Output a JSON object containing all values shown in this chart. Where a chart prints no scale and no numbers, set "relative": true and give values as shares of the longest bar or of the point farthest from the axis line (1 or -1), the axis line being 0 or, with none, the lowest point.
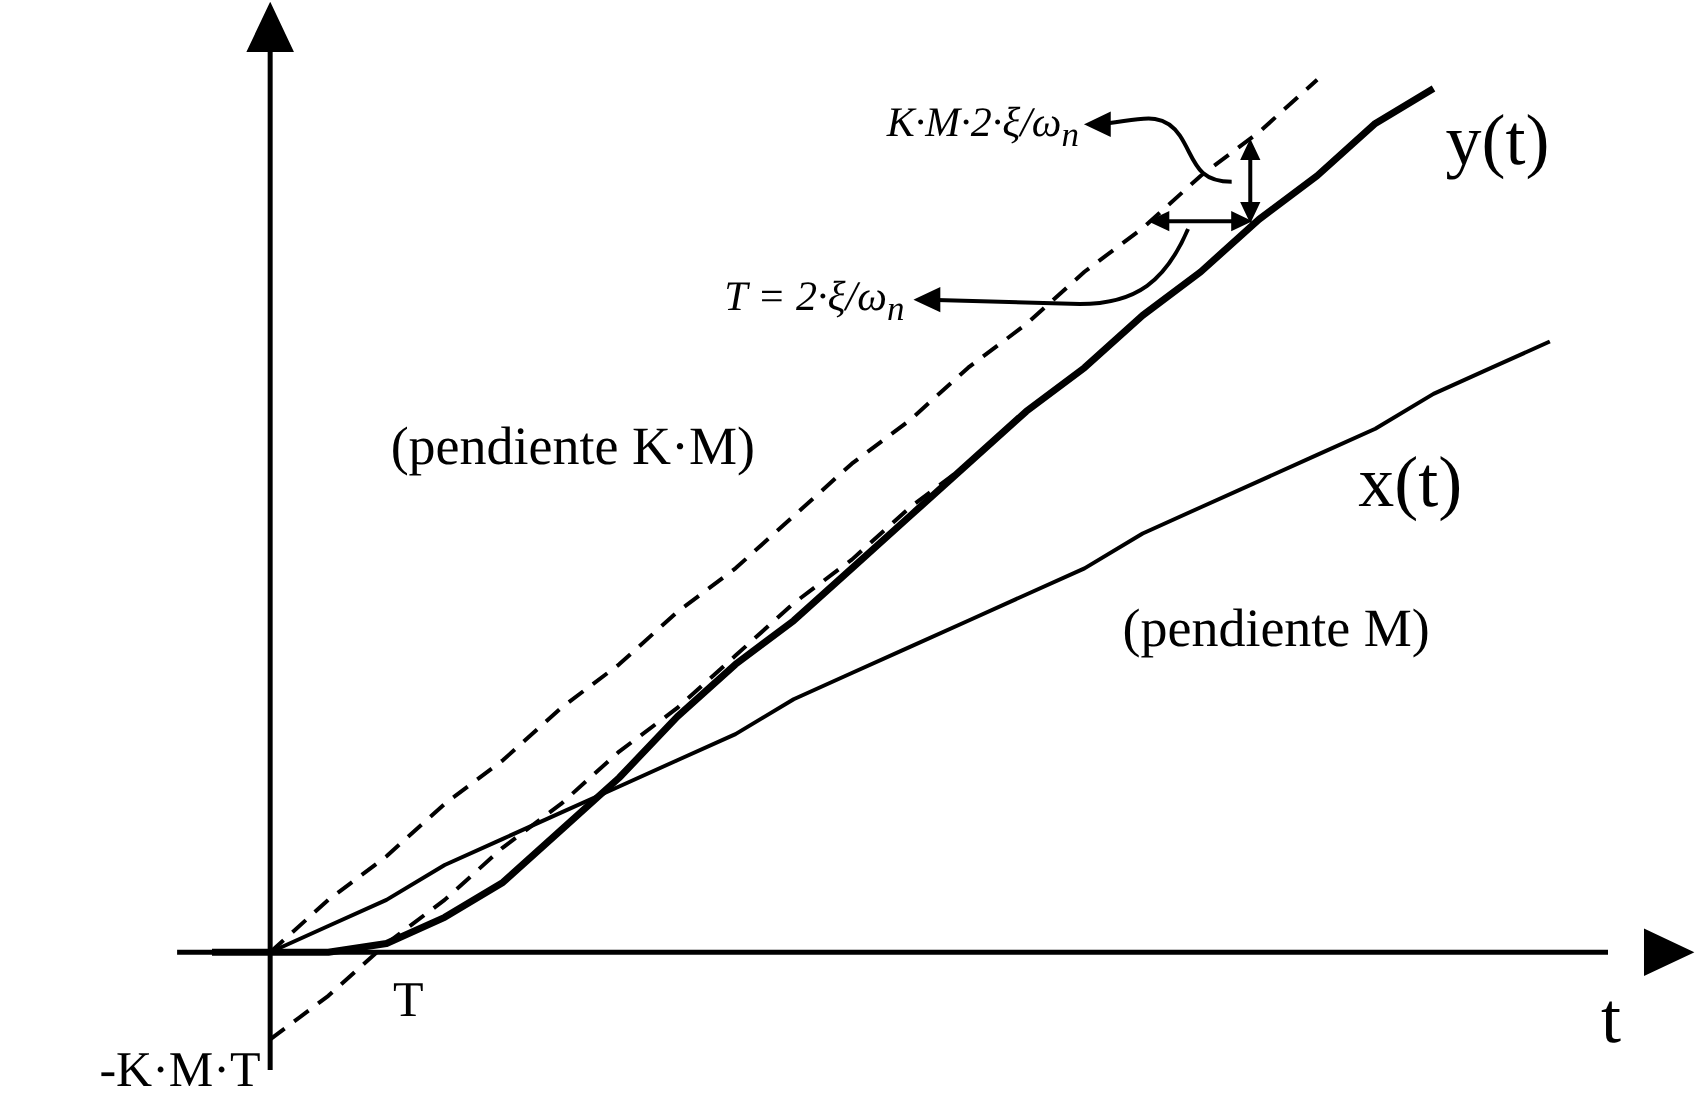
{
  "chart_data": {
    "type": "line",
    "relative": true,
    "xlabel": "t",
    "categories": [
      null,
      null,
      null,
      null,
      null,
      null,
      null,
      null,
      null,
      null,
      null,
      null,
      null,
      null,
      null,
      null,
      null,
      null,
      null,
      null,
      null,
      null,
      null,
      null,
      null
    ],
    "series": [
      {
        "name": "y(t)",
        "color": "#000000",
        "line_style": "solid",
        "values": [
          0,
          0,
          0,
          0.01,
          0.04,
          0.08,
          0.14,
          0.2,
          0.27,
          0.33,
          0.38,
          0.44,
          0.5,
          0.56,
          0.62,
          0.67,
          0.73,
          0.78,
          0.84,
          0.89,
          0.95,
          0.99,
          null,
          null,
          null
        ]
      },
      {
        "name": "x(t)",
        "color": "#000000",
        "line_style": "solid",
        "values": [
          null,
          0,
          0.03,
          0.06,
          0.1,
          0.13,
          0.16,
          0.19,
          0.22,
          0.25,
          0.29,
          0.32,
          0.35,
          0.38,
          0.41,
          0.44,
          0.48,
          0.51,
          0.54,
          0.57,
          0.6,
          0.64,
          0.67,
          0.7,
          null
        ]
      },
      {
        "color": "#000000",
        "line_style": "dashed",
        "values": [
          null,
          0,
          0.06,
          0.11,
          0.17,
          0.22,
          0.28,
          0.33,
          0.39,
          0.44,
          0.5,
          0.56,
          0.61,
          0.67,
          0.72,
          0.78,
          0.83,
          0.89,
          0.94,
          1.0,
          null,
          null,
          null,
          null,
          null
        ]
      },
      {
        "color": "#000000",
        "line_style": "dashed",
        "values": [
          null,
          -0.1,
          -0.05,
          0.01,
          0.06,
          0.12,
          0.17,
          0.23,
          0.28,
          0.34,
          0.4,
          0.45,
          0.51,
          0.56,
          0.62,
          0.67,
          0.73,
          0.78,
          0.84,
          0.89,
          0.95,
          null,
          null,
          null,
          null
        ]
      }
    ],
    "annotations": [
      "(pendiente K·M)",
      "(pendiente M)",
      "T",
      "-K·M·T",
      "K·M·2·ξ/ω$_{n}$",
      "T = 2·ξ/ω$_{n}$"
    ]
  }
}
